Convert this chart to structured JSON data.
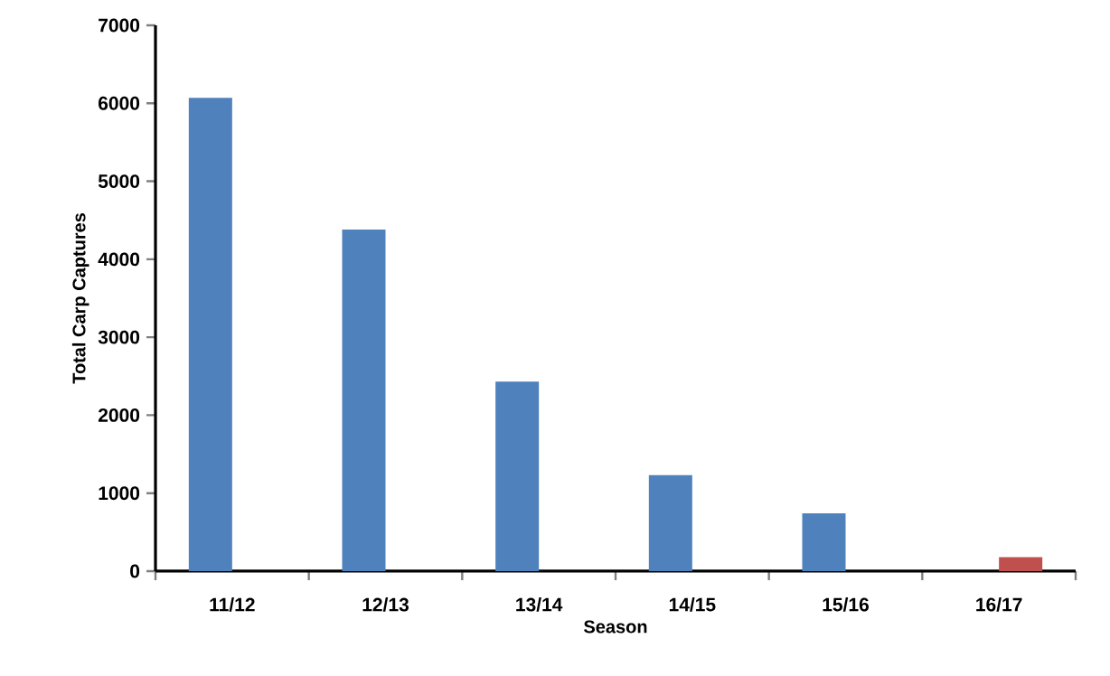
{
  "chart_data": {
    "type": "bar",
    "xlabel": "Season",
    "ylabel": "Total Carp Captures",
    "categories": [
      "11/12",
      "12/13",
      "13/14",
      "14/15",
      "15/16",
      "16/17"
    ],
    "series": [
      {
        "color": "#4f81bd",
        "values": [
          6070,
          4380,
          2430,
          1230,
          740,
          null
        ]
      },
      {
        "color": "#c0504d",
        "values": [
          null,
          null,
          null,
          null,
          null,
          180
        ]
      }
    ],
    "ylim": [
      0,
      7000
    ],
    "yticks": [
      0,
      1000,
      2000,
      3000,
      4000,
      5000,
      6000,
      7000
    ],
    "grid": false
  }
}
